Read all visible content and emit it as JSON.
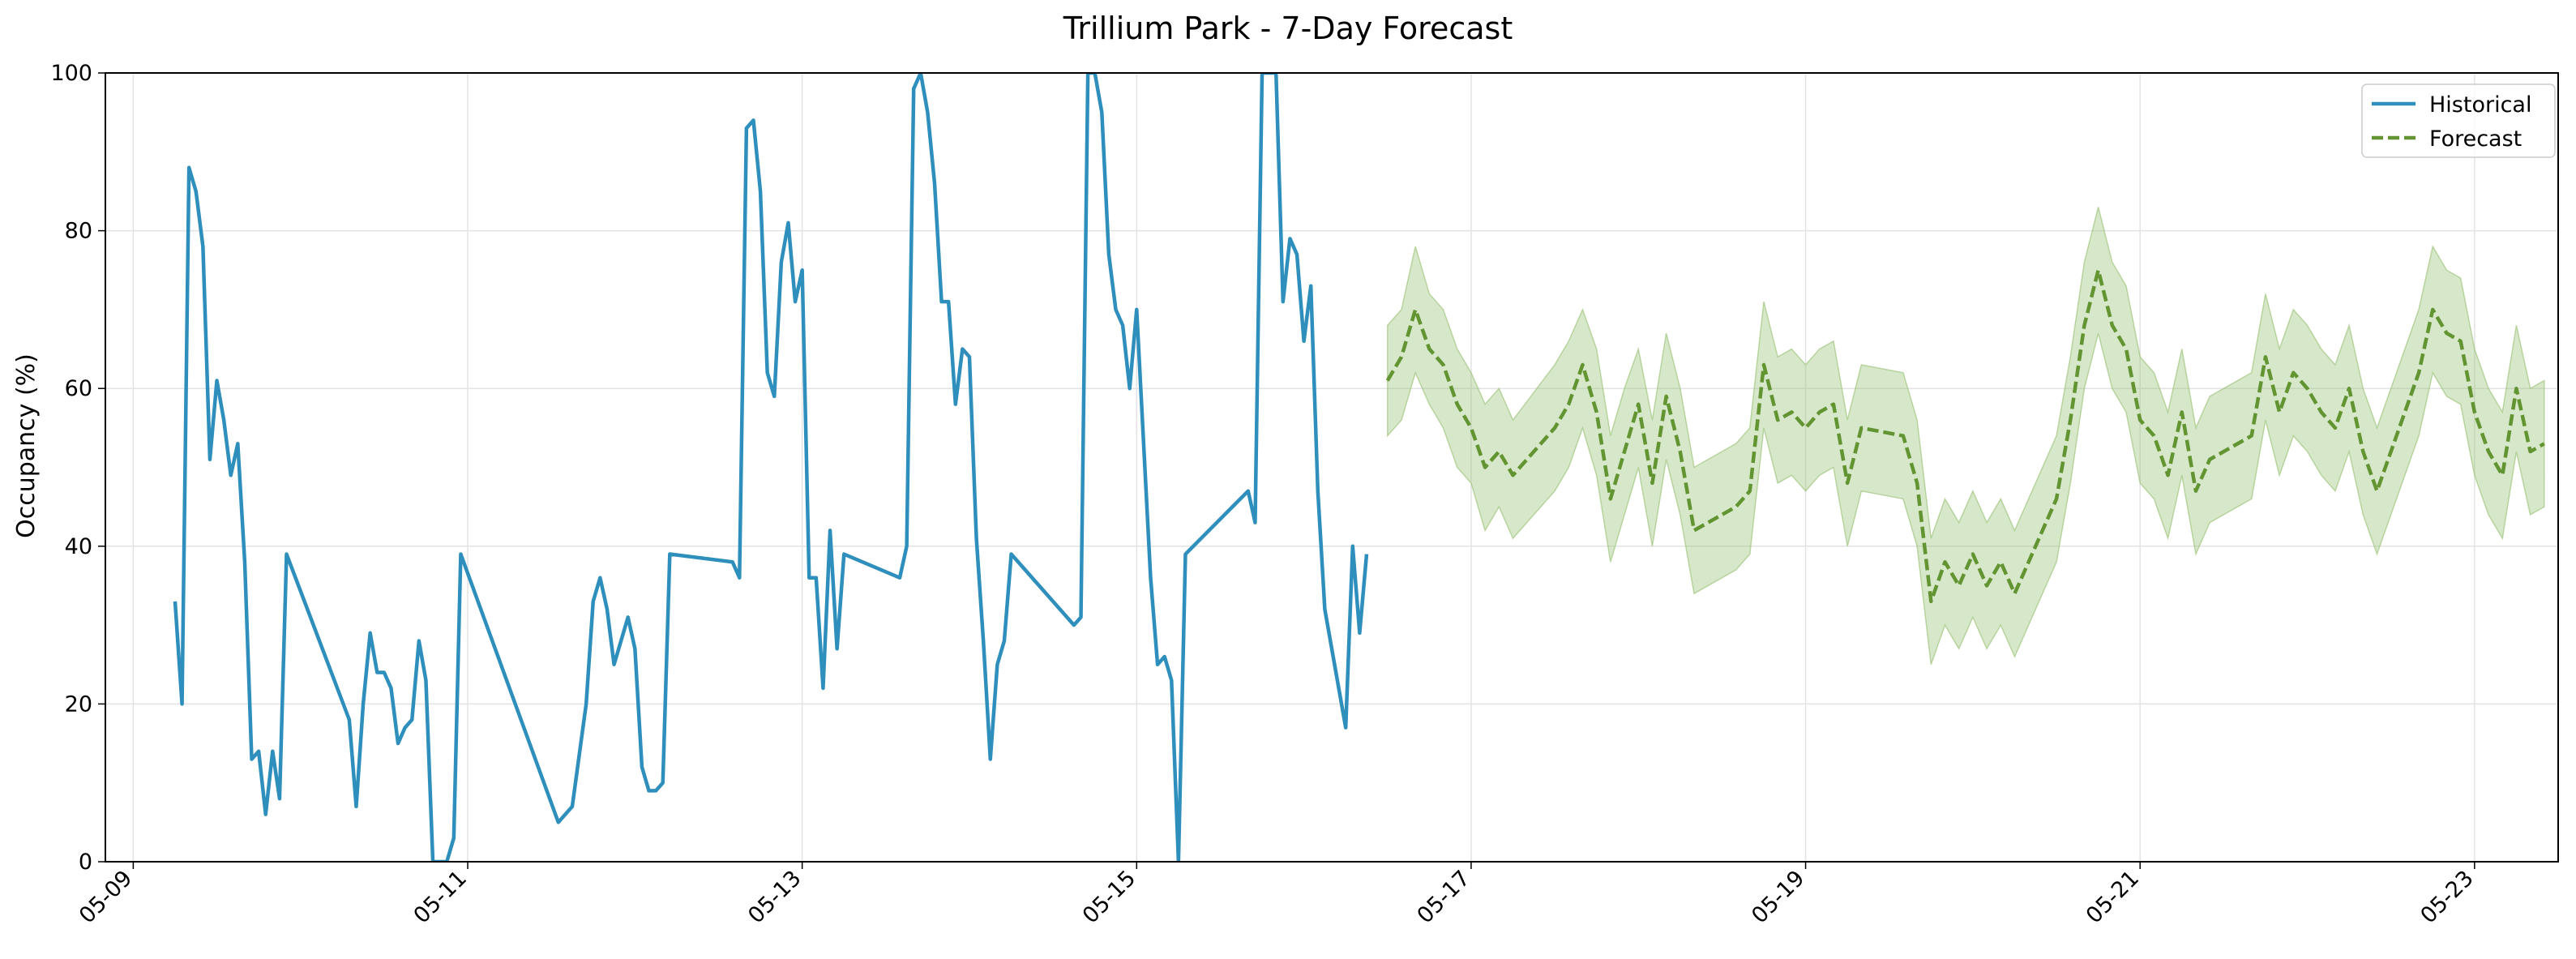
{
  "chart_data": {
    "type": "line",
    "title": "Trillium Park - 7-Day Forecast",
    "xlabel": "",
    "ylabel": "Occupancy (%)",
    "xlim": [
      "2025-05-08T20:00",
      "2025-05-23T12:00"
    ],
    "ylim": [
      0,
      100
    ],
    "x_ticks": [
      "05-09",
      "05-11",
      "05-13",
      "05-15",
      "05-17",
      "05-19",
      "05-21",
      "05-23"
    ],
    "y_ticks": [
      0,
      20,
      40,
      60,
      80,
      100
    ],
    "grid": true,
    "legend_position": "top-right",
    "colors": {
      "historical": "#2e8fbd",
      "forecast": "#629432",
      "band": "#96bf72"
    },
    "series": [
      {
        "name": "Historical",
        "style": "solid",
        "points": [
          [
            "2025-05-09T06:00",
            33
          ],
          [
            "2025-05-09T07:00",
            20
          ],
          [
            "2025-05-09T08:00",
            88
          ],
          [
            "2025-05-09T09:00",
            85
          ],
          [
            "2025-05-09T10:00",
            78
          ],
          [
            "2025-05-09T11:00",
            51
          ],
          [
            "2025-05-09T12:00",
            61
          ],
          [
            "2025-05-09T13:00",
            56
          ],
          [
            "2025-05-09T14:00",
            49
          ],
          [
            "2025-05-09T15:00",
            53
          ],
          [
            "2025-05-09T16:00",
            38
          ],
          [
            "2025-05-09T17:00",
            13
          ],
          [
            "2025-05-09T18:00",
            14
          ],
          [
            "2025-05-09T19:00",
            6
          ],
          [
            "2025-05-09T20:00",
            14
          ],
          [
            "2025-05-09T21:00",
            8
          ],
          [
            "2025-05-09T22:00",
            39
          ],
          [
            "2025-05-10T07:00",
            18
          ],
          [
            "2025-05-10T08:00",
            7
          ],
          [
            "2025-05-10T09:00",
            20
          ],
          [
            "2025-05-10T10:00",
            29
          ],
          [
            "2025-05-10T11:00",
            24
          ],
          [
            "2025-05-10T12:00",
            24
          ],
          [
            "2025-05-10T13:00",
            22
          ],
          [
            "2025-05-10T14:00",
            15
          ],
          [
            "2025-05-10T15:00",
            17
          ],
          [
            "2025-05-10T16:00",
            18
          ],
          [
            "2025-05-10T17:00",
            28
          ],
          [
            "2025-05-10T18:00",
            23
          ],
          [
            "2025-05-10T19:00",
            0
          ],
          [
            "2025-05-10T20:00",
            0
          ],
          [
            "2025-05-10T21:00",
            0
          ],
          [
            "2025-05-10T22:00",
            3
          ],
          [
            "2025-05-10T23:00",
            39
          ],
          [
            "2025-05-11T13:00",
            5
          ],
          [
            "2025-05-11T15:00",
            7
          ],
          [
            "2025-05-11T17:00",
            20
          ],
          [
            "2025-05-11T18:00",
            33
          ],
          [
            "2025-05-11T19:00",
            36
          ],
          [
            "2025-05-11T20:00",
            32
          ],
          [
            "2025-05-11T21:00",
            25
          ],
          [
            "2025-05-11T23:00",
            31
          ],
          [
            "2025-05-12T00:00",
            27
          ],
          [
            "2025-05-12T01:00",
            12
          ],
          [
            "2025-05-12T02:00",
            9
          ],
          [
            "2025-05-12T03:00",
            9
          ],
          [
            "2025-05-12T04:00",
            10
          ],
          [
            "2025-05-12T05:00",
            39
          ],
          [
            "2025-05-12T14:00",
            38
          ],
          [
            "2025-05-12T15:00",
            36
          ],
          [
            "2025-05-12T16:00",
            93
          ],
          [
            "2025-05-12T17:00",
            94
          ],
          [
            "2025-05-12T18:00",
            85
          ],
          [
            "2025-05-12T19:00",
            62
          ],
          [
            "2025-05-12T20:00",
            59
          ],
          [
            "2025-05-12T21:00",
            76
          ],
          [
            "2025-05-12T22:00",
            81
          ],
          [
            "2025-05-12T23:00",
            71
          ],
          [
            "2025-05-13T00:00",
            75
          ],
          [
            "2025-05-13T01:00",
            36
          ],
          [
            "2025-05-13T02:00",
            36
          ],
          [
            "2025-05-13T03:00",
            22
          ],
          [
            "2025-05-13T04:00",
            42
          ],
          [
            "2025-05-13T05:00",
            27
          ],
          [
            "2025-05-13T06:00",
            39
          ],
          [
            "2025-05-13T14:00",
            36
          ],
          [
            "2025-05-13T15:00",
            40
          ],
          [
            "2025-05-13T16:00",
            98
          ],
          [
            "2025-05-13T17:00",
            100
          ],
          [
            "2025-05-13T18:00",
            95
          ],
          [
            "2025-05-13T19:00",
            86
          ],
          [
            "2025-05-13T20:00",
            71
          ],
          [
            "2025-05-13T21:00",
            71
          ],
          [
            "2025-05-13T22:00",
            58
          ],
          [
            "2025-05-13T23:00",
            65
          ],
          [
            "2025-05-14T00:00",
            64
          ],
          [
            "2025-05-14T01:00",
            41
          ],
          [
            "2025-05-14T02:00",
            28
          ],
          [
            "2025-05-14T03:00",
            13
          ],
          [
            "2025-05-14T04:00",
            25
          ],
          [
            "2025-05-14T05:00",
            28
          ],
          [
            "2025-05-14T06:00",
            39
          ],
          [
            "2025-05-14T15:00",
            30
          ],
          [
            "2025-05-14T16:00",
            31
          ],
          [
            "2025-05-14T17:00",
            100
          ],
          [
            "2025-05-14T18:00",
            100
          ],
          [
            "2025-05-14T19:00",
            95
          ],
          [
            "2025-05-14T20:00",
            77
          ],
          [
            "2025-05-14T21:00",
            70
          ],
          [
            "2025-05-14T22:00",
            68
          ],
          [
            "2025-05-14T23:00",
            60
          ],
          [
            "2025-05-15T00:00",
            70
          ],
          [
            "2025-05-15T01:00",
            53
          ],
          [
            "2025-05-15T02:00",
            36
          ],
          [
            "2025-05-15T03:00",
            25
          ],
          [
            "2025-05-15T04:00",
            26
          ],
          [
            "2025-05-15T05:00",
            23
          ],
          [
            "2025-05-15T06:00",
            0
          ],
          [
            "2025-05-15T07:00",
            39
          ],
          [
            "2025-05-15T16:00",
            47
          ],
          [
            "2025-05-15T17:00",
            43
          ],
          [
            "2025-05-15T18:00",
            100
          ],
          [
            "2025-05-15T19:00",
            100
          ],
          [
            "2025-05-15T20:00",
            100
          ],
          [
            "2025-05-15T21:00",
            71
          ],
          [
            "2025-05-15T22:00",
            79
          ],
          [
            "2025-05-15T23:00",
            77
          ],
          [
            "2025-05-16T00:00",
            66
          ],
          [
            "2025-05-16T01:00",
            73
          ],
          [
            "2025-05-16T02:00",
            47
          ],
          [
            "2025-05-16T03:00",
            32
          ],
          [
            "2025-05-16T06:00",
            17
          ],
          [
            "2025-05-16T07:00",
            40
          ],
          [
            "2025-05-16T08:00",
            29
          ],
          [
            "2025-05-16T09:00",
            39
          ]
        ]
      },
      {
        "name": "Forecast",
        "style": "dashed",
        "points": [
          [
            "2025-05-16T12:00",
            61,
            54,
            68
          ],
          [
            "2025-05-16T14:00",
            64,
            56,
            70
          ],
          [
            "2025-05-16T16:00",
            70,
            62,
            78
          ],
          [
            "2025-05-16T18:00",
            65,
            58,
            72
          ],
          [
            "2025-05-16T20:00",
            63,
            55,
            70
          ],
          [
            "2025-05-16T22:00",
            58,
            50,
            65
          ],
          [
            "2025-05-17T00:00",
            55,
            48,
            62
          ],
          [
            "2025-05-17T02:00",
            50,
            42,
            58
          ],
          [
            "2025-05-17T04:00",
            52,
            45,
            60
          ],
          [
            "2025-05-17T06:00",
            49,
            41,
            56
          ],
          [
            "2025-05-17T12:00",
            55,
            47,
            63
          ],
          [
            "2025-05-17T14:00",
            58,
            50,
            66
          ],
          [
            "2025-05-17T16:00",
            63,
            55,
            70
          ],
          [
            "2025-05-17T18:00",
            57,
            49,
            65
          ],
          [
            "2025-05-17T20:00",
            46,
            38,
            54
          ],
          [
            "2025-05-17T22:00",
            52,
            44,
            60
          ],
          [
            "2025-05-18T00:00",
            58,
            50,
            65
          ],
          [
            "2025-05-18T02:00",
            48,
            40,
            56
          ],
          [
            "2025-05-18T04:00",
            59,
            51,
            67
          ],
          [
            "2025-05-18T06:00",
            52,
            44,
            60
          ],
          [
            "2025-05-18T08:00",
            42,
            34,
            50
          ],
          [
            "2025-05-18T14:00",
            45,
            37,
            53
          ],
          [
            "2025-05-18T16:00",
            47,
            39,
            55
          ],
          [
            "2025-05-18T18:00",
            63,
            55,
            71
          ],
          [
            "2025-05-18T20:00",
            56,
            48,
            64
          ],
          [
            "2025-05-18T22:00",
            57,
            49,
            65
          ],
          [
            "2025-05-19T00:00",
            55,
            47,
            63
          ],
          [
            "2025-05-19T02:00",
            57,
            49,
            65
          ],
          [
            "2025-05-19T04:00",
            58,
            50,
            66
          ],
          [
            "2025-05-19T06:00",
            48,
            40,
            56
          ],
          [
            "2025-05-19T08:00",
            55,
            47,
            63
          ],
          [
            "2025-05-19T14:00",
            54,
            46,
            62
          ],
          [
            "2025-05-19T16:00",
            48,
            40,
            56
          ],
          [
            "2025-05-19T18:00",
            33,
            25,
            41
          ],
          [
            "2025-05-19T20:00",
            38,
            30,
            46
          ],
          [
            "2025-05-19T22:00",
            35,
            27,
            43
          ],
          [
            "2025-05-20T00:00",
            39,
            31,
            47
          ],
          [
            "2025-05-20T02:00",
            35,
            27,
            43
          ],
          [
            "2025-05-20T04:00",
            38,
            30,
            46
          ],
          [
            "2025-05-20T06:00",
            34,
            26,
            42
          ],
          [
            "2025-05-20T12:00",
            46,
            38,
            54
          ],
          [
            "2025-05-20T14:00",
            56,
            48,
            64
          ],
          [
            "2025-05-20T16:00",
            68,
            60,
            76
          ],
          [
            "2025-05-20T18:00",
            75,
            67,
            83
          ],
          [
            "2025-05-20T20:00",
            68,
            60,
            76
          ],
          [
            "2025-05-20T22:00",
            65,
            57,
            73
          ],
          [
            "2025-05-21T00:00",
            56,
            48,
            64
          ],
          [
            "2025-05-21T02:00",
            54,
            46,
            62
          ],
          [
            "2025-05-21T04:00",
            49,
            41,
            57
          ],
          [
            "2025-05-21T06:00",
            57,
            49,
            65
          ],
          [
            "2025-05-21T08:00",
            47,
            39,
            55
          ],
          [
            "2025-05-21T10:00",
            51,
            43,
            59
          ],
          [
            "2025-05-21T16:00",
            54,
            46,
            62
          ],
          [
            "2025-05-21T18:00",
            64,
            56,
            72
          ],
          [
            "2025-05-21T20:00",
            57,
            49,
            65
          ],
          [
            "2025-05-21T22:00",
            62,
            54,
            70
          ],
          [
            "2025-05-22T00:00",
            60,
            52,
            68
          ],
          [
            "2025-05-22T02:00",
            57,
            49,
            65
          ],
          [
            "2025-05-22T04:00",
            55,
            47,
            63
          ],
          [
            "2025-05-22T06:00",
            60,
            52,
            68
          ],
          [
            "2025-05-22T08:00",
            52,
            44,
            60
          ],
          [
            "2025-05-22T10:00",
            47,
            39,
            55
          ],
          [
            "2025-05-22T16:00",
            62,
            54,
            70
          ],
          [
            "2025-05-22T18:00",
            70,
            62,
            78
          ],
          [
            "2025-05-22T20:00",
            67,
            59,
            75
          ],
          [
            "2025-05-22T22:00",
            66,
            58,
            74
          ],
          [
            "2025-05-23T00:00",
            57,
            49,
            65
          ],
          [
            "2025-05-23T02:00",
            52,
            44,
            60
          ],
          [
            "2025-05-23T04:00",
            49,
            41,
            57
          ],
          [
            "2025-05-23T06:00",
            60,
            52,
            68
          ],
          [
            "2025-05-23T08:00",
            52,
            44,
            60
          ],
          [
            "2025-05-23T10:00",
            53,
            45,
            61
          ]
        ]
      }
    ]
  }
}
